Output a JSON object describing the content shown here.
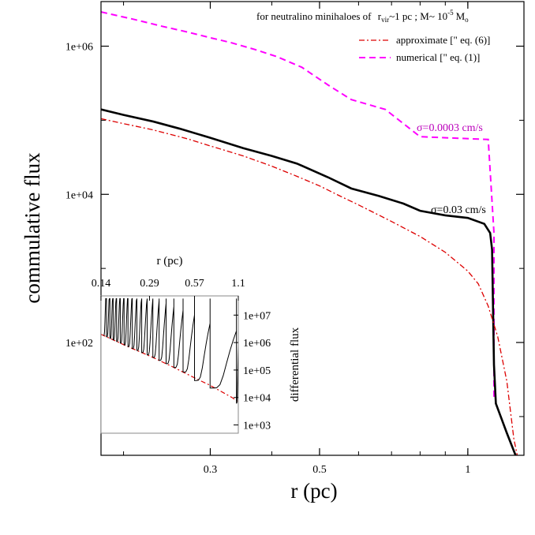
{
  "chart_data": [
    {
      "id": "main",
      "type": "line",
      "scale": {
        "x": "log",
        "y": "log"
      },
      "xlim": [
        0.18,
        1.3
      ],
      "ylim": [
        3,
        4000000
      ],
      "xlabel": "r (pc)",
      "ylabel": "commulative flux",
      "x_ticks": [
        {
          "value": 0.3,
          "label": "0.3"
        },
        {
          "value": 0.5,
          "label": "0.5"
        },
        {
          "value": 1,
          "label": "1"
        }
      ],
      "y_ticks": [
        {
          "value": 100,
          "label": "1e+02"
        },
        {
          "value": 10000,
          "label": "1e+04"
        },
        {
          "value": 1000000,
          "label": "1e+06"
        }
      ],
      "title": {
        "prefix": "for neutralino minihaloes of",
        "rvir_sym": "r",
        "rvir_sub": "vir",
        "rvir_val": "~1 pc ; M~ 10",
        "exp": "-5",
        "unit": "M",
        "unit_sub": "o"
      },
      "legend": [
        {
          "key": "approximate",
          "label": "approximate  [\" eq. (6)]",
          "color": "#dd0000",
          "dash": "dashdot"
        },
        {
          "key": "numerical",
          "label": "numerical [\" eq. (1)]",
          "color": "#ff00ff",
          "dash": "dashed"
        }
      ],
      "annotations": [
        {
          "key": "sig1",
          "text": "σ=0.0003 cm/s",
          "x": 0.84,
          "y": 78000,
          "color": "#bb00bb"
        },
        {
          "key": "sig2",
          "text": "σ=0.03 cm/s",
          "x": 0.86,
          "y": 7300,
          "color": "#000000"
        }
      ],
      "series": [
        {
          "name": "numerical σ=0.0003 cm/s",
          "color": "#ff00ff",
          "dash": "dashed",
          "points": [
            [
              0.18,
              2900000
            ],
            [
              0.21,
              2300000
            ],
            [
              0.24,
              1850000
            ],
            [
              0.27,
              1550000
            ],
            [
              0.3,
              1300000
            ],
            [
              0.33,
              1120000
            ],
            [
              0.37,
              900000
            ],
            [
              0.41,
              720000
            ],
            [
              0.46,
              520000
            ],
            [
              0.52,
              300000
            ],
            [
              0.58,
              190000
            ],
            [
              0.68,
              140000
            ],
            [
              0.8,
              60000
            ],
            [
              1.1,
              55000
            ],
            [
              1.13,
              3000
            ],
            [
              1.13,
              1600
            ],
            [
              1.13,
              18
            ]
          ]
        },
        {
          "name": "numerical σ=0.03 cm/s",
          "color": "#000000",
          "dash": "solid",
          "points": [
            [
              0.18,
              140000
            ],
            [
              0.2,
              118000
            ],
            [
              0.23,
              96000
            ],
            [
              0.26,
              77000
            ],
            [
              0.3,
              58000
            ],
            [
              0.35,
              42000
            ],
            [
              0.4,
              33000
            ],
            [
              0.45,
              26000
            ],
            [
              0.52,
              17000
            ],
            [
              0.58,
              12000
            ],
            [
              0.66,
              9500
            ],
            [
              0.74,
              7500
            ],
            [
              0.8,
              6000
            ],
            [
              0.9,
              5200
            ],
            [
              1.0,
              4800
            ],
            [
              1.08,
              4000
            ],
            [
              1.11,
              3000
            ],
            [
              1.12,
              1800
            ],
            [
              1.125,
              300
            ],
            [
              1.13,
              50
            ],
            [
              1.14,
              15
            ],
            [
              1.2,
              6
            ],
            [
              1.25,
              3
            ]
          ]
        },
        {
          "name": "approximate",
          "color": "#dd0000",
          "dash": "dashdot",
          "points": [
            [
              0.18,
              105000
            ],
            [
              0.2,
              90000
            ],
            [
              0.23,
              74000
            ],
            [
              0.27,
              56000
            ],
            [
              0.3,
              45000
            ],
            [
              0.35,
              33000
            ],
            [
              0.4,
              24000
            ],
            [
              0.45,
              17500
            ],
            [
              0.5,
              13000
            ],
            [
              0.55,
              9500
            ],
            [
              0.6,
              7200
            ],
            [
              0.7,
              4300
            ],
            [
              0.8,
              2700
            ],
            [
              0.9,
              1650
            ],
            [
              1.0,
              920
            ],
            [
              1.05,
              620
            ],
            [
              1.1,
              310
            ],
            [
              1.15,
              120
            ],
            [
              1.2,
              30
            ],
            [
              1.24,
              5
            ],
            [
              1.26,
              3
            ]
          ]
        }
      ]
    },
    {
      "id": "inset",
      "type": "line",
      "scale": {
        "x": "log",
        "y": "log"
      },
      "xlim": [
        0.14,
        1.1
      ],
      "ylim": [
        500,
        50000000
      ],
      "xlabel": "r (pc)",
      "ylabel": "differential flux",
      "x_ticks": [
        {
          "value": 0.14,
          "label": "0.14"
        },
        {
          "value": 0.29,
          "label": "0.29"
        },
        {
          "value": 0.57,
          "label": "0.57"
        },
        {
          "value": 1.1,
          "label": "1.1"
        }
      ],
      "y_ticks": [
        {
          "value": 1000,
          "label": "1e+03"
        },
        {
          "value": 10000,
          "label": "1e+04"
        },
        {
          "value": 100000,
          "label": "1e+05"
        },
        {
          "value": 1000000,
          "label": "1e+06"
        },
        {
          "value": 10000000,
          "label": "1e+07"
        }
      ],
      "spikes": [
        0.145,
        0.152,
        0.16,
        0.168,
        0.177,
        0.187,
        0.198,
        0.21,
        0.224,
        0.24,
        0.258,
        0.28,
        0.305,
        0.335,
        0.372,
        0.418,
        0.48,
        0.57,
        0.72,
        1.07
      ],
      "series": [
        {
          "name": "approximate",
          "color": "#dd0000",
          "dash": "dashdot",
          "points": [
            [
              0.14,
              2000000
            ],
            [
              0.2,
              800000
            ],
            [
              0.3,
              300000
            ],
            [
              0.4,
              140000
            ],
            [
              0.5,
              75000
            ],
            [
              0.6,
              45000
            ],
            [
              0.7,
              30000
            ],
            [
              0.8,
              20000
            ],
            [
              1.0,
              10000
            ],
            [
              1.1,
              7000
            ]
          ]
        }
      ]
    }
  ]
}
